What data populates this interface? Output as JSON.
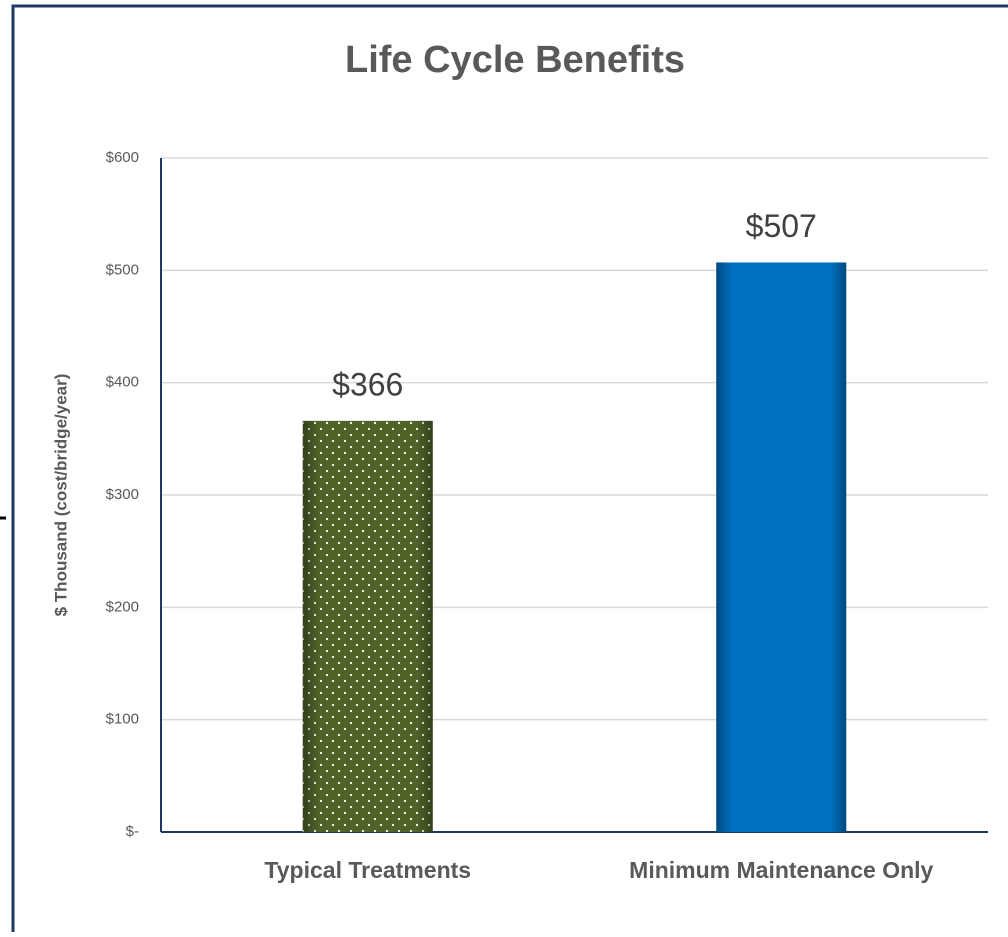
{
  "chart_data": {
    "type": "bar",
    "title": "Life Cycle Benefits",
    "y_axis_label": "$ Thousand (cost/bridge/year)",
    "categories": [
      "Typical Treatments",
      "Minimum Maintenance Only"
    ],
    "values": [
      366,
      507
    ],
    "value_labels": [
      "$366",
      "$507"
    ],
    "colors": [
      "#4f6228",
      "#0070c0"
    ],
    "patterns": [
      "dots",
      "solid"
    ],
    "ylim": [
      0,
      600
    ],
    "yticks": [
      {
        "value": 0,
        "label": "$-"
      },
      {
        "value": 100,
        "label": "$100"
      },
      {
        "value": 200,
        "label": "$200"
      },
      {
        "value": 300,
        "label": "$300"
      },
      {
        "value": 400,
        "label": "$400"
      },
      {
        "value": 500,
        "label": "$500"
      },
      {
        "value": 600,
        "label": "$600"
      }
    ],
    "grid": true
  }
}
